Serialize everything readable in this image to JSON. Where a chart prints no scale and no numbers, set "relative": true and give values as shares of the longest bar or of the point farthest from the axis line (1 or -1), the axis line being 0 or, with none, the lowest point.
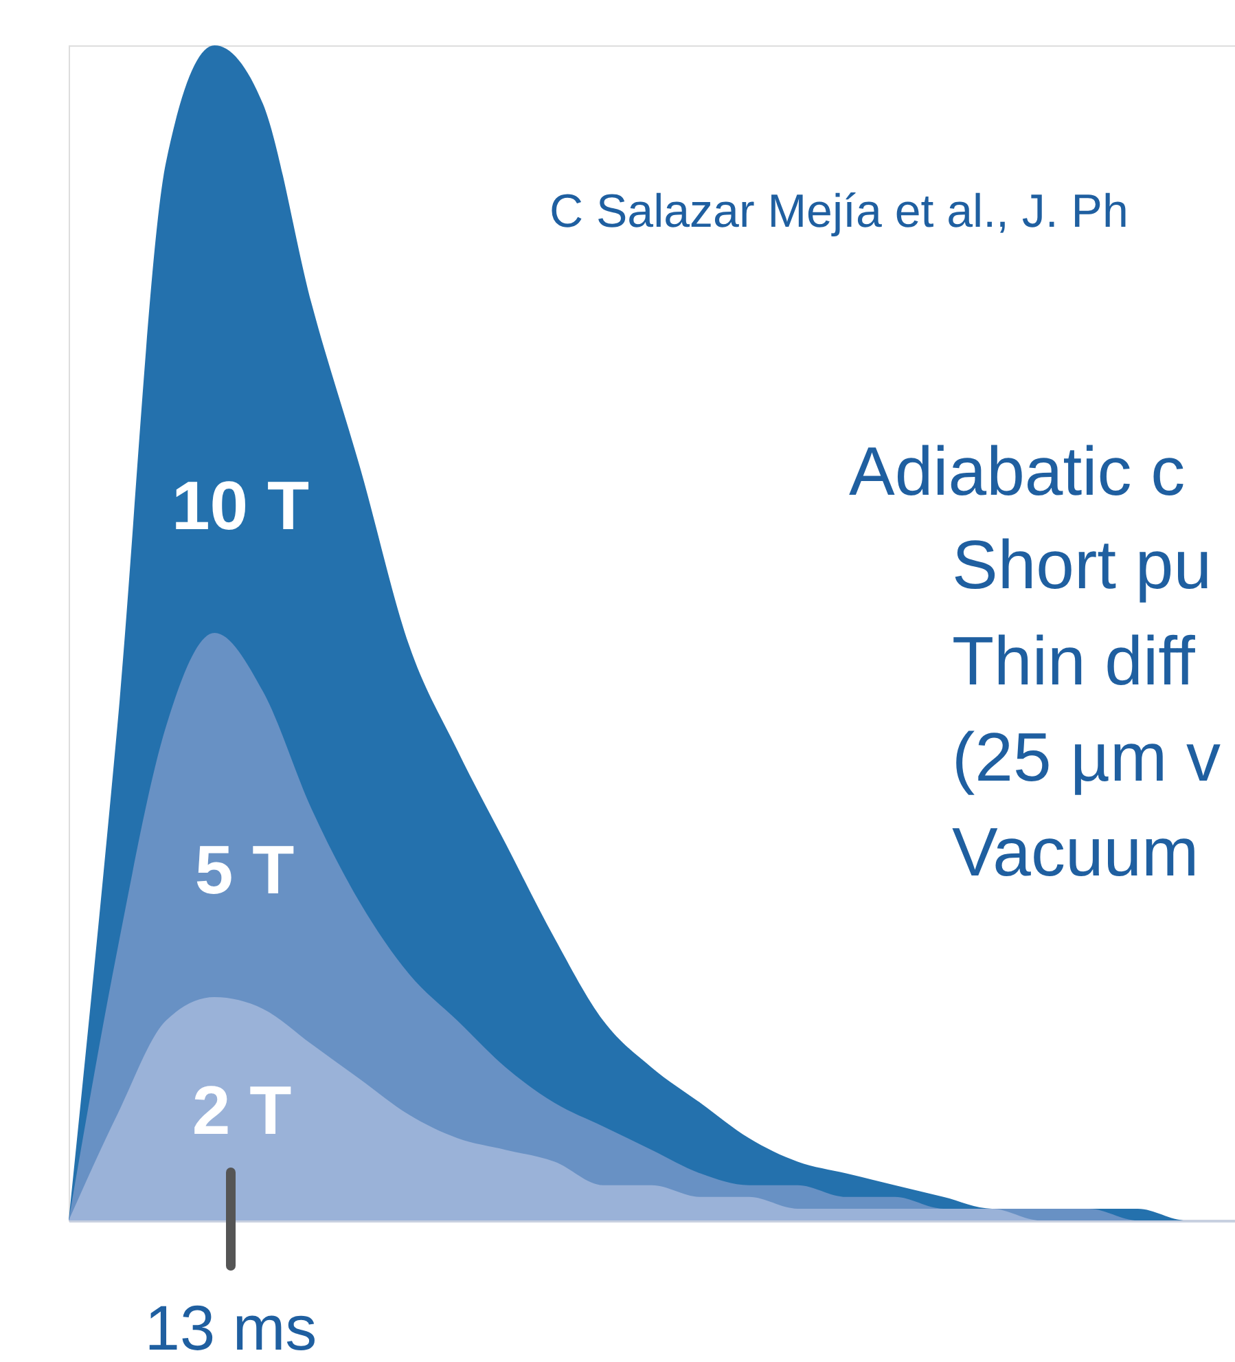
{
  "chart_data": {
    "type": "area",
    "relative": true,
    "categories": [
      null,
      null,
      null,
      null,
      null,
      null,
      null,
      null,
      null,
      null,
      null,
      null,
      null,
      null,
      null,
      null,
      null,
      null,
      null,
      null,
      null,
      null,
      null,
      null,
      null
    ],
    "series": [
      {
        "name": "10 T",
        "color": "#2471ad",
        "values": [
          0,
          0.42,
          0.9,
          1.0,
          0.95,
          0.78,
          0.64,
          0.49,
          0.4,
          0.32,
          0.24,
          0.17,
          0.13,
          0.1,
          0.07,
          0.05,
          0.04,
          0.03,
          0.02,
          0.01,
          0.01,
          0.01,
          0.01,
          0.0,
          0.0
        ]
      },
      {
        "name": "5 T",
        "color": "#6891c4",
        "values": [
          0,
          0.23,
          0.42,
          0.5,
          0.45,
          0.35,
          0.27,
          0.21,
          0.17,
          0.13,
          0.1,
          0.08,
          0.06,
          0.04,
          0.03,
          0.03,
          0.02,
          0.02,
          0.01,
          0.01,
          0.01,
          0.01,
          0.0,
          0.0,
          0.0
        ]
      },
      {
        "name": "2 T",
        "color": "#9ab2d8",
        "values": [
          0,
          0.09,
          0.17,
          0.19,
          0.18,
          0.15,
          0.12,
          0.09,
          0.07,
          0.06,
          0.05,
          0.03,
          0.03,
          0.02,
          0.02,
          0.01,
          0.01,
          0.01,
          0.01,
          0.01,
          0.0,
          0.0,
          0.0,
          0.0,
          0.0
        ]
      }
    ],
    "annotations": [
      "13 ms",
      "C Salazar Mejía et al., J. Ph",
      "Adiabatic c",
      "Short pu",
      "Thin diff",
      "(25 µm v",
      "Vacuum"
    ]
  }
}
